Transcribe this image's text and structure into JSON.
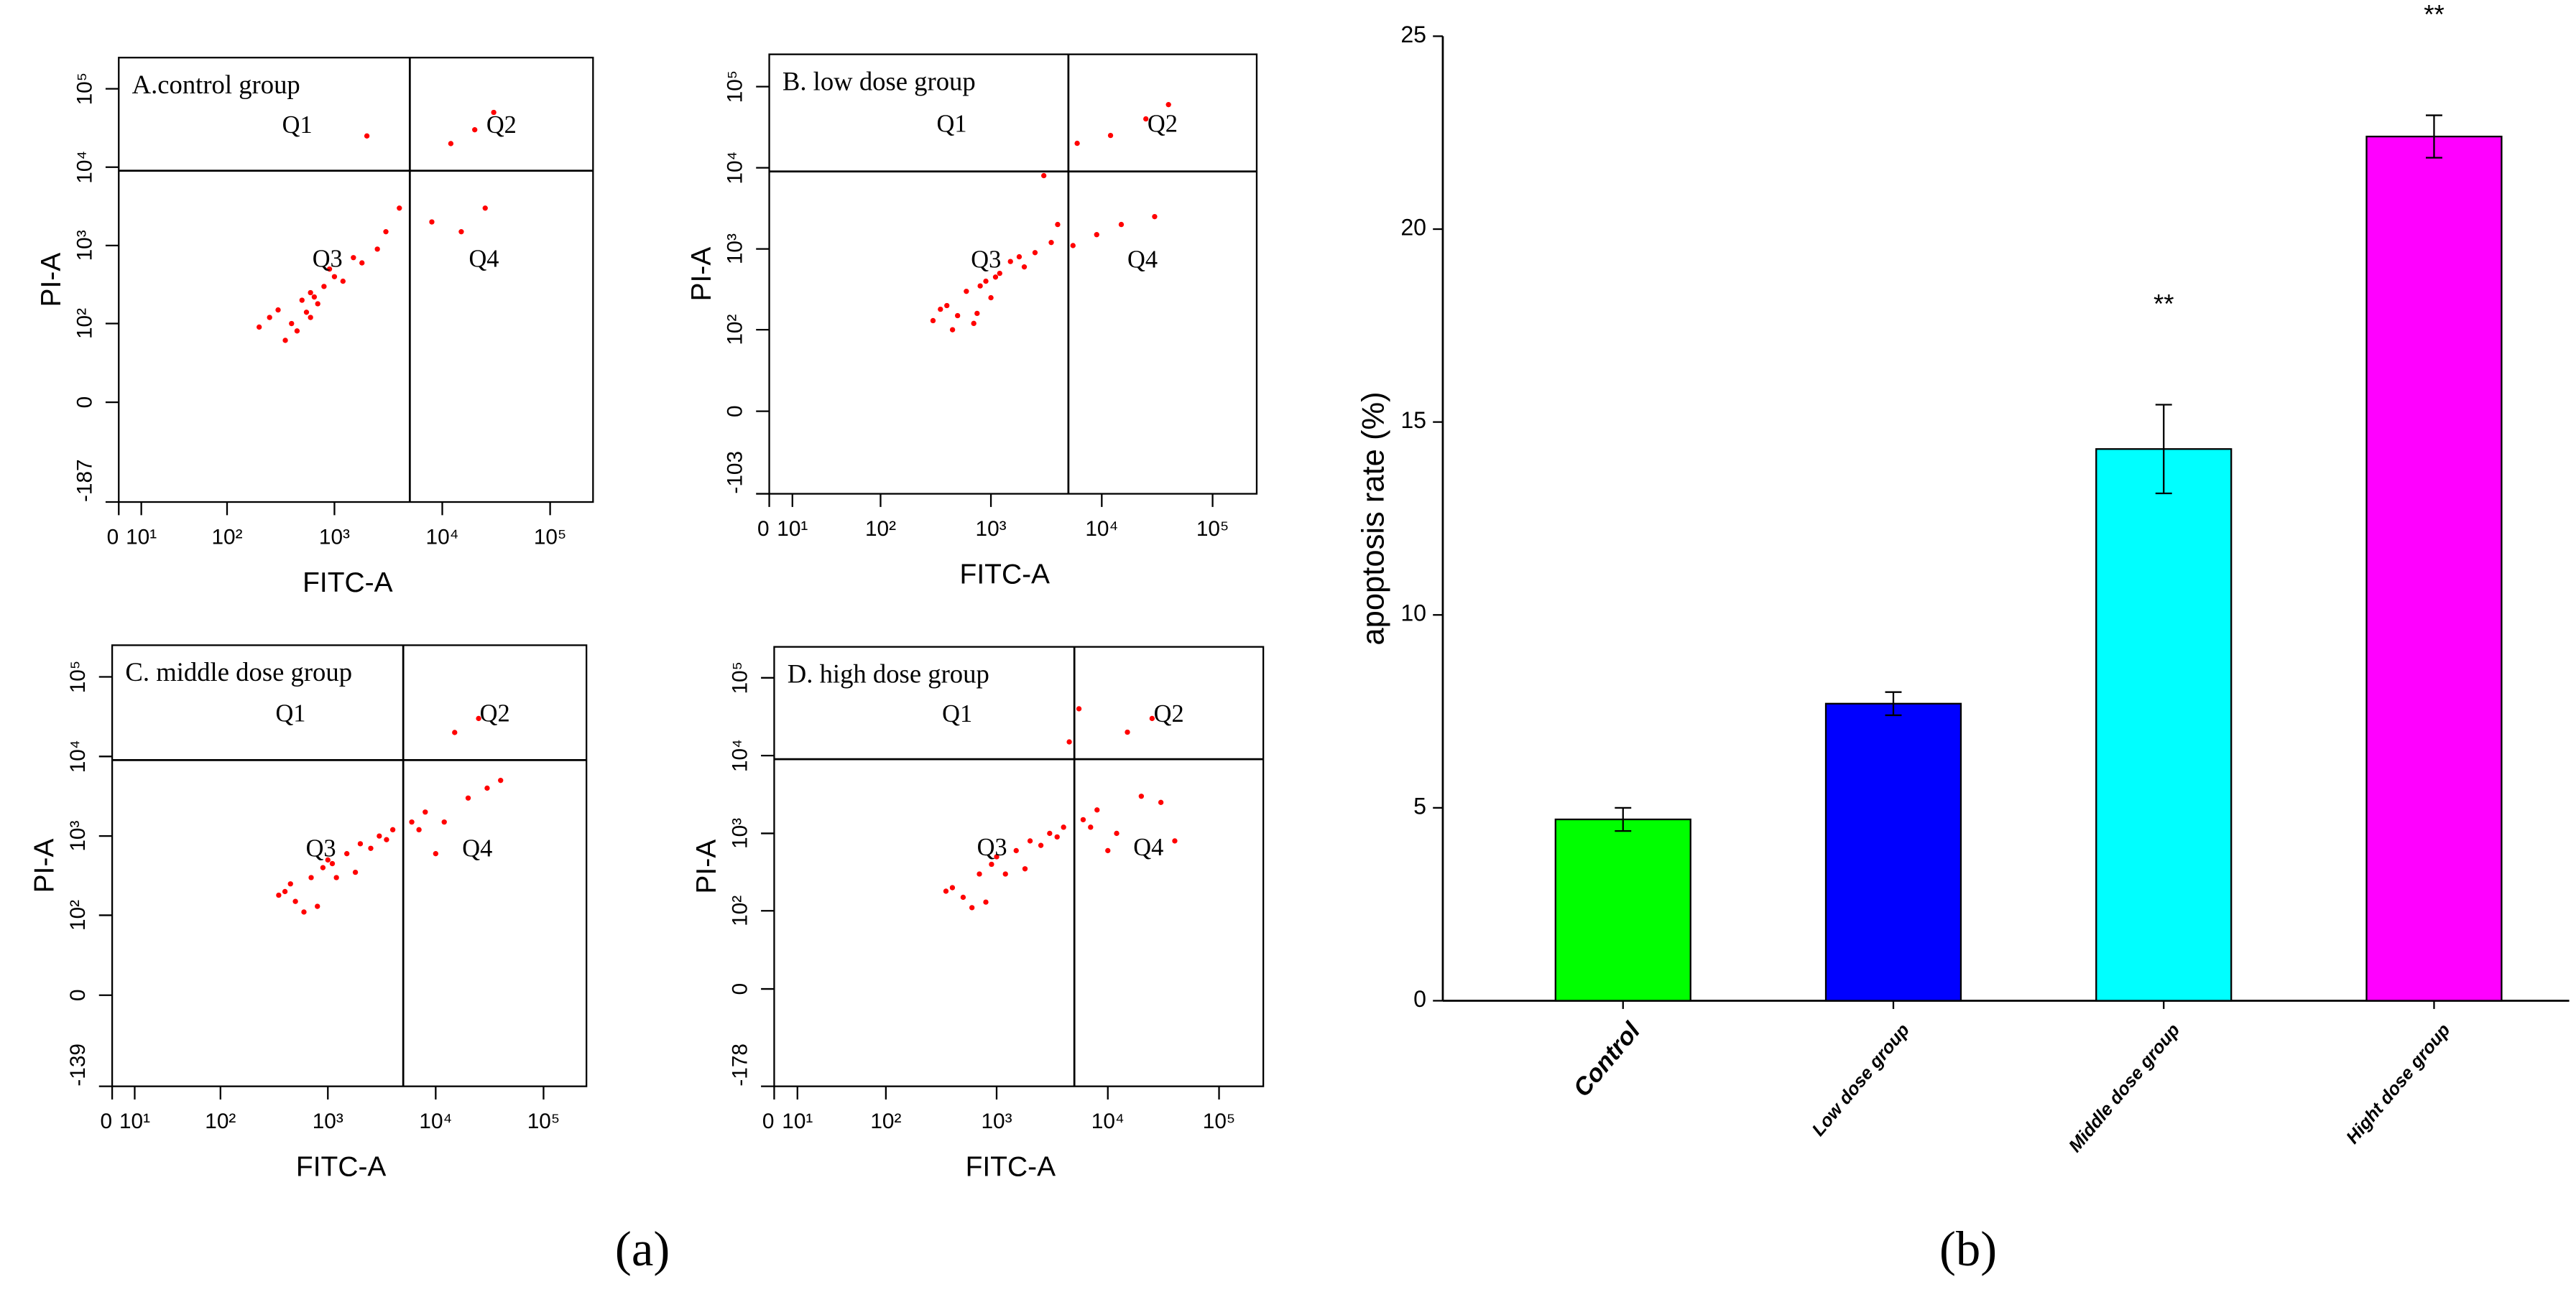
{
  "chart_data": [
    {
      "type": "scatter",
      "title": "A.control group",
      "x_label": "FITC-A",
      "y_label": "PI-A",
      "color": "#ff0000",
      "quadrants": [
        "Q1",
        "Q2",
        "Q3",
        "Q4"
      ],
      "gate": {
        "x": 5000,
        "y": 9000
      },
      "xlim": [
        0,
        250000
      ],
      "ylim": [
        -187,
        250000
      ],
      "xticks": [
        0,
        {
          "value": 10,
          "label": "10¹"
        },
        {
          "value": 100,
          "label": "10²"
        },
        {
          "value": 1000,
          "label": "10³"
        },
        {
          "value": 10000,
          "label": "10⁴"
        },
        {
          "value": 100000,
          "label": "10⁵"
        }
      ],
      "yticks": [
        -187,
        0,
        {
          "value": 100,
          "label": "10²"
        },
        {
          "value": 1000,
          "label": "10³"
        },
        {
          "value": 10000,
          "label": "10⁴"
        },
        {
          "value": 100000,
          "label": "10⁵"
        }
      ],
      "x": [
        300,
        500,
        800,
        400,
        600,
        1000,
        250,
        700,
        450,
        900,
        1500,
        2500,
        3000,
        1200,
        8000,
        15000,
        25000,
        12000,
        20000,
        30000,
        2000,
        4000,
        350,
        600,
        200,
        550,
        650,
        1800
      ],
      "y": [
        150,
        200,
        300,
        100,
        250,
        400,
        120,
        180,
        80,
        500,
        700,
        900,
        1500,
        350,
        2000,
        1500,
        3000,
        20000,
        30000,
        50000,
        25000,
        3000,
        60,
        120,
        90,
        140,
        220,
        600
      ]
    },
    {
      "type": "scatter",
      "title": "B. low dose group",
      "x_label": "FITC-A",
      "y_label": "PI-A",
      "color": "#ff0000",
      "quadrants": [
        "Q1",
        "Q2",
        "Q3",
        "Q4"
      ],
      "gate": {
        "x": 5000,
        "y": 9000
      },
      "xlim": [
        0,
        250000
      ],
      "ylim": [
        -103,
        250000
      ],
      "xticks": [
        0,
        {
          "value": 10,
          "label": "10¹"
        },
        {
          "value": 100,
          "label": "10²"
        },
        {
          "value": 1000,
          "label": "10³"
        },
        {
          "value": 10000,
          "label": "10⁴"
        },
        {
          "value": 100000,
          "label": "10⁵"
        }
      ],
      "yticks": [
        -103,
        0,
        {
          "value": 100,
          "label": "10²"
        },
        {
          "value": 1000,
          "label": "10³"
        },
        {
          "value": 10000,
          "label": "10⁴"
        },
        {
          "value": 100000,
          "label": "10⁵"
        }
      ],
      "x": [
        400,
        600,
        900,
        500,
        800,
        1200,
        350,
        1000,
        700,
        1500,
        2500,
        3500,
        4000,
        2000,
        9000,
        15000,
        30000,
        6000,
        12000,
        25000,
        40000,
        3000,
        450,
        750,
        300,
        1100,
        1800,
        5500
      ],
      "y": [
        200,
        300,
        400,
        150,
        350,
        500,
        180,
        250,
        120,
        700,
        900,
        1200,
        2000,
        600,
        1500,
        2000,
        2500,
        20000,
        25000,
        40000,
        60000,
        8000,
        100,
        160,
        130,
        450,
        800,
        1100
      ]
    },
    {
      "type": "scatter",
      "title": "C. middle dose group",
      "x_label": "FITC-A",
      "y_label": "PI-A",
      "color": "#ff0000",
      "quadrants": [
        "Q1",
        "Q2",
        "Q3",
        "Q4"
      ],
      "gate": {
        "x": 5000,
        "y": 9000
      },
      "xlim": [
        0,
        250000
      ],
      "ylim": [
        -139,
        250000
      ],
      "xticks": [
        0,
        {
          "value": 10,
          "label": "10¹"
        },
        {
          "value": 100,
          "label": "10²"
        },
        {
          "value": 1000,
          "label": "10³"
        },
        {
          "value": 10000,
          "label": "10⁴"
        },
        {
          "value": 100000,
          "label": "10⁵"
        }
      ],
      "yticks": [
        -139,
        0,
        {
          "value": 100,
          "label": "10²"
        },
        {
          "value": 1000,
          "label": "10³"
        },
        {
          "value": 10000,
          "label": "10⁴"
        },
        {
          "value": 100000,
          "label": "10⁵"
        }
      ],
      "x": [
        400,
        700,
        1000,
        500,
        900,
        1500,
        350,
        1200,
        800,
        2000,
        3000,
        4000,
        6000,
        2500,
        8000,
        12000,
        20000,
        30000,
        15000,
        25000,
        40000,
        10000,
        600,
        1800,
        450,
        3500,
        7000,
        1100
      ],
      "y": [
        200,
        300,
        500,
        150,
        400,
        600,
        180,
        300,
        130,
        800,
        1000,
        1200,
        1500,
        700,
        2000,
        1500,
        3000,
        4000,
        20000,
        30000,
        5000,
        600,
        110,
        350,
        250,
        900,
        1200,
        450
      ]
    },
    {
      "type": "scatter",
      "title": "D. high dose group",
      "x_label": "FITC-A",
      "y_label": "PI-A",
      "color": "#ff0000",
      "quadrants": [
        "Q1",
        "Q2",
        "Q3",
        "Q4"
      ],
      "gate": {
        "x": 5000,
        "y": 9000
      },
      "xlim": [
        0,
        250000
      ],
      "ylim": [
        -178,
        250000
      ],
      "xticks": [
        0,
        {
          "value": 10,
          "label": "10¹"
        },
        {
          "value": 100,
          "label": "10²"
        },
        {
          "value": 1000,
          "label": "10³"
        },
        {
          "value": 10000,
          "label": "10⁴"
        },
        {
          "value": 100000,
          "label": "10⁵"
        }
      ],
      "yticks": [
        -178,
        0,
        {
          "value": 100,
          "label": "10²"
        },
        {
          "value": 1000,
          "label": "10³"
        },
        {
          "value": 10000,
          "label": "10⁴"
        },
        {
          "value": 100000,
          "label": "10⁵"
        }
      ],
      "x": [
        400,
        700,
        1000,
        500,
        900,
        1500,
        350,
        1200,
        800,
        2000,
        3000,
        4000,
        6000,
        2500,
        8000,
        12000,
        20000,
        30000,
        15000,
        25000,
        4500,
        10000,
        600,
        1800,
        5500,
        3500,
        7000,
        40000
      ],
      "y": [
        200,
        300,
        500,
        150,
        400,
        600,
        180,
        300,
        130,
        800,
        1000,
        1200,
        1500,
        700,
        2000,
        1000,
        3000,
        2500,
        20000,
        30000,
        15000,
        600,
        110,
        350,
        40000,
        900,
        1200,
        800
      ]
    },
    {
      "type": "bar",
      "y_label": "apoptosis rate (%)",
      "categories": [
        "Control",
        "Low dose group",
        "Middle dose group",
        "Hight dose group"
      ],
      "values": [
        4.7,
        7.7,
        14.3,
        22.4
      ],
      "errors": [
        0.3,
        0.3,
        1.15,
        0.55
      ],
      "colors": [
        "#00ff00",
        "#0000ff",
        "#00ffff",
        "#ff00ff"
      ],
      "annotations": [
        null,
        null,
        "**",
        "**"
      ],
      "ylim": [
        0,
        25
      ],
      "yticks": [
        0,
        5,
        10,
        15,
        20,
        25
      ]
    }
  ],
  "captions": [
    "(a)",
    "(b)"
  ]
}
